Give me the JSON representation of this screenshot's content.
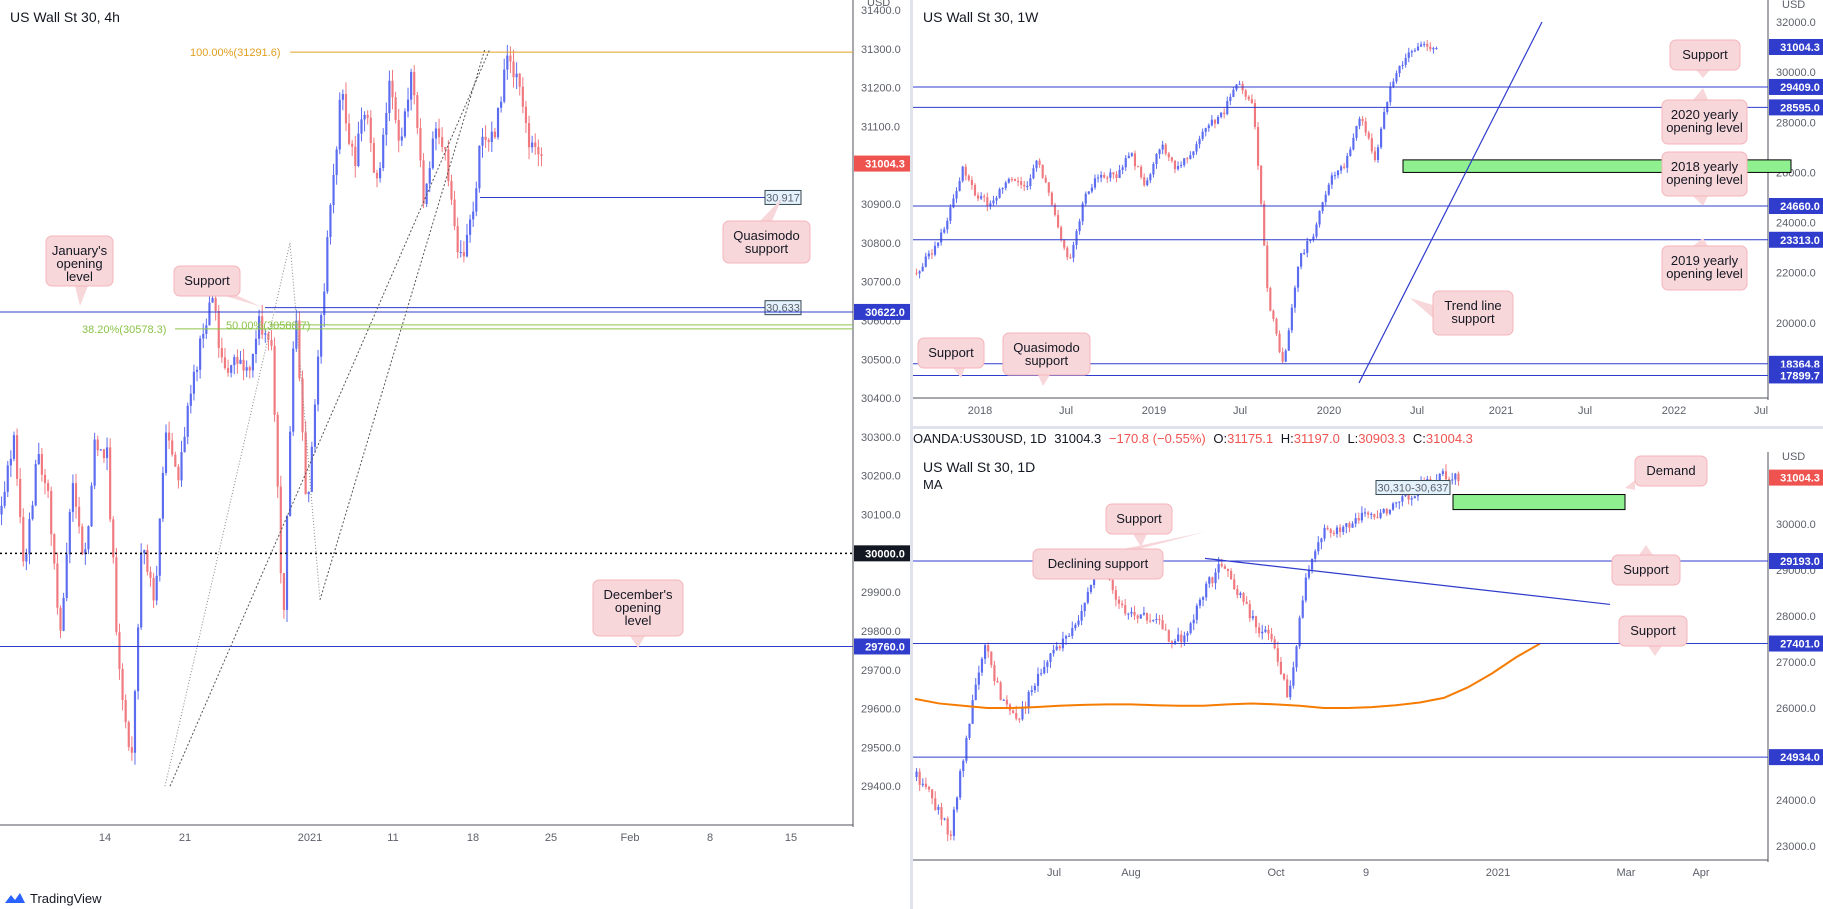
{
  "header": {
    "symbol": "OANDA:US30USD, 1D",
    "last": "31004.3",
    "change": "−170.8 (−0.55%)",
    "o_label": "O:",
    "o": "31175.1",
    "h_label": "H:",
    "h": "31197.0",
    "l_label": "L:",
    "l": "30903.3",
    "c_label": "C:",
    "c": "31004.3"
  },
  "footer": {
    "brand": "TradingView"
  },
  "colors": {
    "up": "#5b6cf0",
    "down": "#f0797f",
    "level": "#2f3ccc",
    "fib": "#e0a020",
    "fib_green": "#8bc34a",
    "note_bg": "#f8d7da",
    "ma": "#f57c00",
    "zone": "#8ef08e"
  },
  "chart_data": [
    {
      "type": "candlestick",
      "title": "US Wall St 30, 4h",
      "currency": "USD",
      "ylim": [
        29300,
        31400
      ],
      "yticks": [
        "31400.0",
        "31300.0",
        "31200.0",
        "31100.0",
        "31000.0",
        "30900.0",
        "30800.0",
        "30700.0",
        "30600.0",
        "30500.0",
        "30400.0",
        "30300.0",
        "30200.0",
        "30100.0",
        "30000.0",
        "29900.0",
        "29800.0",
        "29700.0",
        "29600.0",
        "29500.0",
        "29400.0"
      ],
      "xticks": [
        "14",
        "21",
        "2021",
        "11",
        "18",
        "25",
        "Feb",
        "8",
        "15"
      ],
      "path": [
        30100,
        30300,
        29950,
        30250,
        30150,
        29780,
        30200,
        29950,
        30300,
        30250,
        29700,
        29450,
        30050,
        29850,
        30300,
        30200,
        30400,
        30550,
        30650,
        30450,
        30500,
        30450,
        30600,
        30550,
        29800,
        30650,
        30100,
        30500,
        30900,
        31200,
        31000,
        31150,
        30950,
        31200,
        31050,
        31250,
        30900,
        31100,
        31000,
        30750,
        30850,
        31100,
        31050,
        31291,
        31200,
        31050,
        31000
      ],
      "levels": [
        {
          "value": 31291.6,
          "label": "100.00%(31291.6)",
          "kind": "fib"
        },
        {
          "value": 30917,
          "label": "30,917",
          "kind": "box"
        },
        {
          "value": 30633,
          "label": "30,633",
          "kind": "box"
        },
        {
          "value": 30622.0,
          "label": "30622.0",
          "kind": "tag"
        },
        {
          "value": 30588.7,
          "label": "50.00%(30588.7)",
          "kind": "fib_green"
        },
        {
          "value": 30578.3,
          "label": "38.20%(30578.3)",
          "kind": "fib_green"
        },
        {
          "value": 30000.0,
          "label": "30000.0",
          "kind": "dotted"
        },
        {
          "value": 29760.0,
          "label": "29760.0",
          "kind": "tag"
        }
      ],
      "last_price": "31004.3",
      "annotations": [
        "January's opening level",
        "Support",
        "Quasimodo support",
        "December's opening level"
      ]
    },
    {
      "type": "candlestick",
      "title": "US Wall St 30, 1W",
      "currency": "USD",
      "ylim": [
        17000,
        32400
      ],
      "yticks": [
        "32000.0",
        "30000.0",
        "28000.0",
        "26000.0",
        "24000.0",
        "22000.0",
        "20000.0"
      ],
      "xticks": [
        "2018",
        "Jul",
        "2019",
        "Jul",
        "2020",
        "Jul",
        "2021",
        "Jul",
        "2022",
        "Jul"
      ],
      "path": [
        22000,
        22800,
        24000,
        26200,
        25000,
        24700,
        25800,
        25300,
        26500,
        24300,
        22400,
        25000,
        26000,
        25800,
        26800,
        25400,
        27100,
        26200,
        26900,
        27800,
        28300,
        29500,
        28700,
        21000,
        18200,
        22500,
        23600,
        25700,
        26200,
        28300,
        26500,
        29600,
        30600,
        31100,
        31000
      ],
      "levels": [
        {
          "value": 29409.0,
          "label": "29409.0"
        },
        {
          "value": 28595.0,
          "label": "28595.0"
        },
        {
          "value": 24660.0,
          "label": "24660.0"
        },
        {
          "value": 23313.0,
          "label": "23313.0"
        },
        {
          "value": 18364.8,
          "label": "18364.8"
        },
        {
          "value": 17899.7,
          "label": "17899.7"
        }
      ],
      "demand_zone": [
        26000,
        26500
      ],
      "last_price": "31004.3",
      "annotations": [
        "Support",
        "2020 yearly opening level",
        "2018 yearly opening level",
        "2019 yearly opening level",
        "Trend line support",
        "Support",
        "Quasimodo support"
      ]
    },
    {
      "type": "candlestick",
      "title": "US Wall St 30, 1D",
      "indicator": "MA",
      "currency": "USD",
      "ylim": [
        22700,
        31300
      ],
      "yticks": [
        "31000.0",
        "30000.0",
        "29000.0",
        "28000.0",
        "27000.0",
        "26000.0",
        "25000.0",
        "24000.0",
        "23000.0"
      ],
      "xticks": [
        "Jul",
        "Aug",
        "Oct",
        "9",
        "2021",
        "Mar",
        "Apr"
      ],
      "path": [
        24500,
        24000,
        23200,
        25500,
        27400,
        26200,
        25800,
        26500,
        27200,
        27500,
        28400,
        29100,
        28200,
        27900,
        28000,
        27400,
        27600,
        28600,
        29100,
        28500,
        27800,
        27500,
        26200,
        28900,
        29900,
        29800,
        30200,
        30100,
        30300,
        30600,
        30900,
        31100,
        31000
      ],
      "ma": [
        26200,
        26100,
        26050,
        26000,
        26000,
        26020,
        26050,
        26070,
        26080,
        26080,
        26060,
        26050,
        26050,
        26080,
        26100,
        26080,
        26050,
        26000,
        26000,
        26020,
        26060,
        26120,
        26220,
        26450,
        26750,
        27100,
        27400
      ],
      "levels": [
        {
          "value": 29193.0,
          "label": "29193.0"
        },
        {
          "value": 27401.0,
          "label": "27401.0"
        },
        {
          "value": 24934.0,
          "label": "24934.0"
        }
      ],
      "demand_zone": [
        30310,
        30637
      ],
      "demand_label": "30,310-30,637",
      "last_price": "31004.3",
      "annotations": [
        "Demand",
        "Support",
        "Declining support",
        "Support",
        "Support"
      ]
    }
  ]
}
